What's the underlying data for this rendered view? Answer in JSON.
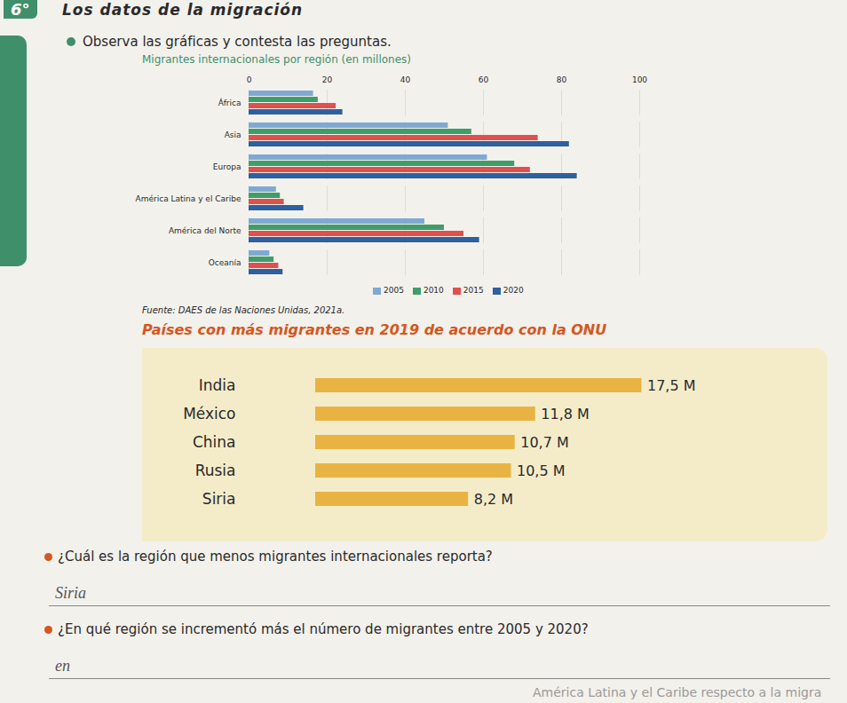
{
  "page": {
    "grade": "6°",
    "title": "Los datos de la migración",
    "instruction": "Observa las gráficas y contesta las preguntas.",
    "questions": [
      {
        "question": "¿Cuál es la región que menos migrantes internacionales reporta?",
        "answer": "Siria"
      },
      {
        "question": "¿En qué región se incrementó más el número de migrantes entre 2005 y 2020?",
        "answer": "en"
      }
    ],
    "footer_fragment": "América Latina y el Caribe respecto a la migra"
  },
  "chart_data": [
    {
      "type": "bar",
      "orientation": "horizontal",
      "title": "Migrantes internacionales por región (en millones)",
      "source": "Fuente: DAES de las Naciones Unidas, 2021a.",
      "categories": [
        "África",
        "Asia",
        "Europa",
        "América Latina y el Caribe",
        "América del Norte",
        "Oceanía"
      ],
      "series": [
        {
          "name": "2005",
          "color": "#7fa9d2",
          "values": [
            16.5,
            51,
            61,
            7,
            45,
            5.3
          ]
        },
        {
          "name": "2010",
          "color": "#3e9e6a",
          "values": [
            17.7,
            57,
            68,
            8,
            50,
            6.4
          ]
        },
        {
          "name": "2015",
          "color": "#e0504f",
          "values": [
            22.3,
            74,
            72,
            9,
            55,
            7.6
          ]
        },
        {
          "name": "2020",
          "color": "#2f5f9e",
          "values": [
            24,
            82,
            84,
            14,
            59,
            8.7
          ]
        }
      ],
      "xlim": [
        0,
        100
      ],
      "xticks": [
        0,
        20,
        40,
        60,
        80,
        100
      ],
      "grid": true,
      "legend": "bottom"
    },
    {
      "type": "bar",
      "orientation": "horizontal",
      "title": "Países con más migrantes en 2019 de acuerdo con la ONU",
      "categories": [
        "India",
        "México",
        "China",
        "Rusia",
        "Siria"
      ],
      "values": [
        17.5,
        11.8,
        10.7,
        10.5,
        8.2
      ],
      "value_labels": [
        "17,5 M",
        "11,8 M",
        "10,7 M",
        "10,5 M",
        "8,2 M"
      ],
      "color": "#e9b343",
      "xlim": [
        0,
        20
      ],
      "tick_labels": "y",
      "data_labels": true
    }
  ]
}
